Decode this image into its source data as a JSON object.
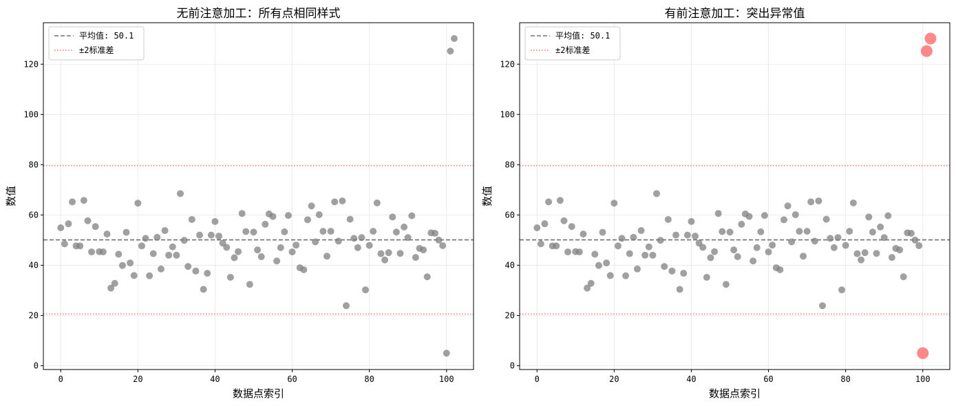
{
  "chart_data": [
    {
      "type": "scatter",
      "title": "无前注意加工：所有点相同样式",
      "xlabel": "数据点索引",
      "ylabel": "数值",
      "xlim": [
        -4.5,
        107
      ],
      "ylim": [
        -1.5,
        136.5
      ],
      "xticks": [
        0,
        20,
        40,
        60,
        80,
        100
      ],
      "yticks": [
        0,
        20,
        40,
        60,
        80,
        100,
        120
      ],
      "grid": true,
      "legend_position": "upper-left",
      "legend": [
        {
          "label": "平均值: 50.1",
          "style": "dashed",
          "color": "#808080"
        },
        {
          "label": "±2标准差",
          "style": "dotted",
          "color": "#ff6b6b"
        }
      ],
      "mean": 50.1,
      "upper": 79.6,
      "lower": 20.6,
      "point_color": "#808080",
      "highlight_color": "#ff6b6b",
      "highlight_outliers": false,
      "outliers": [],
      "y": [
        54.9,
        48.5,
        56.5,
        65.2,
        47.7,
        47.7,
        65.8,
        57.7,
        45.3,
        55.4,
        45.4,
        45.3,
        52.4,
        30.9,
        32.8,
        44.4,
        39.9,
        53.1,
        40.9,
        35.9,
        64.7,
        47.7,
        50.7,
        35.8,
        44.6,
        51.1,
        38.5,
        53.8,
        44.0,
        47.3,
        44.0,
        68.5,
        49.9,
        39.5,
        58.2,
        37.7,
        52.0,
        30.4,
        36.8,
        52.0,
        57.4,
        51.6,
        48.8,
        47.1,
        35.2,
        43.0,
        45.4,
        60.6,
        53.4,
        32.4,
        53.2,
        46.1,
        43.4,
        56.3,
        60.4,
        59.4,
        41.7,
        47.0,
        53.3,
        59.8,
        45.3,
        48.0,
        39.0,
        38.2,
        58.1,
        63.6,
        49.3,
        60.1,
        53.5,
        43.6,
        53.5,
        65.2,
        49.6,
        65.6,
        23.9,
        58.3,
        50.7,
        47.0,
        51.0,
        30.2,
        47.9,
        53.5,
        64.8,
        44.6,
        42.1,
        45.0,
        59.2,
        53.2,
        44.7,
        55.2,
        51.0,
        59.7,
        43.1,
        46.7,
        46.1,
        35.4,
        52.9,
        52.7,
        50.0,
        47.8,
        5.0,
        125.2,
        130.2
      ]
    },
    {
      "type": "scatter",
      "title": "有前注意加工：突出异常值",
      "xlabel": "数据点索引",
      "ylabel": "数值",
      "xlim": [
        -4.5,
        107
      ],
      "ylim": [
        -1.5,
        136.5
      ],
      "xticks": [
        0,
        20,
        40,
        60,
        80,
        100
      ],
      "yticks": [
        0,
        20,
        40,
        60,
        80,
        100,
        120
      ],
      "grid": true,
      "legend_position": "upper-left",
      "legend": [
        {
          "label": "平均值: 50.1",
          "style": "dashed",
          "color": "#808080"
        },
        {
          "label": "±2标准差",
          "style": "dotted",
          "color": "#ff6b6b"
        }
      ],
      "mean": 50.1,
      "upper": 79.6,
      "lower": 20.6,
      "point_color": "#808080",
      "highlight_color": "#ff6b6b",
      "highlight_outliers": true,
      "outliers": [
        100,
        101,
        102
      ],
      "y": [
        54.9,
        48.5,
        56.5,
        65.2,
        47.7,
        47.7,
        65.8,
        57.7,
        45.3,
        55.4,
        45.4,
        45.3,
        52.4,
        30.9,
        32.8,
        44.4,
        39.9,
        53.1,
        40.9,
        35.9,
        64.7,
        47.7,
        50.7,
        35.8,
        44.6,
        51.1,
        38.5,
        53.8,
        44.0,
        47.3,
        44.0,
        68.5,
        49.9,
        39.5,
        58.2,
        37.7,
        52.0,
        30.4,
        36.8,
        52.0,
        57.4,
        51.6,
        48.8,
        47.1,
        35.2,
        43.0,
        45.4,
        60.6,
        53.4,
        32.4,
        53.2,
        46.1,
        43.4,
        56.3,
        60.4,
        59.4,
        41.7,
        47.0,
        53.3,
        59.8,
        45.3,
        48.0,
        39.0,
        38.2,
        58.1,
        63.6,
        49.3,
        60.1,
        53.5,
        43.6,
        53.5,
        65.2,
        49.6,
        65.6,
        23.9,
        58.3,
        50.7,
        47.0,
        51.0,
        30.2,
        47.9,
        53.5,
        64.8,
        44.6,
        42.1,
        45.0,
        59.2,
        53.2,
        44.7,
        55.2,
        51.0,
        59.7,
        43.1,
        46.7,
        46.1,
        35.4,
        52.9,
        52.7,
        50.0,
        47.8,
        5.0,
        125.2,
        130.2
      ]
    }
  ]
}
